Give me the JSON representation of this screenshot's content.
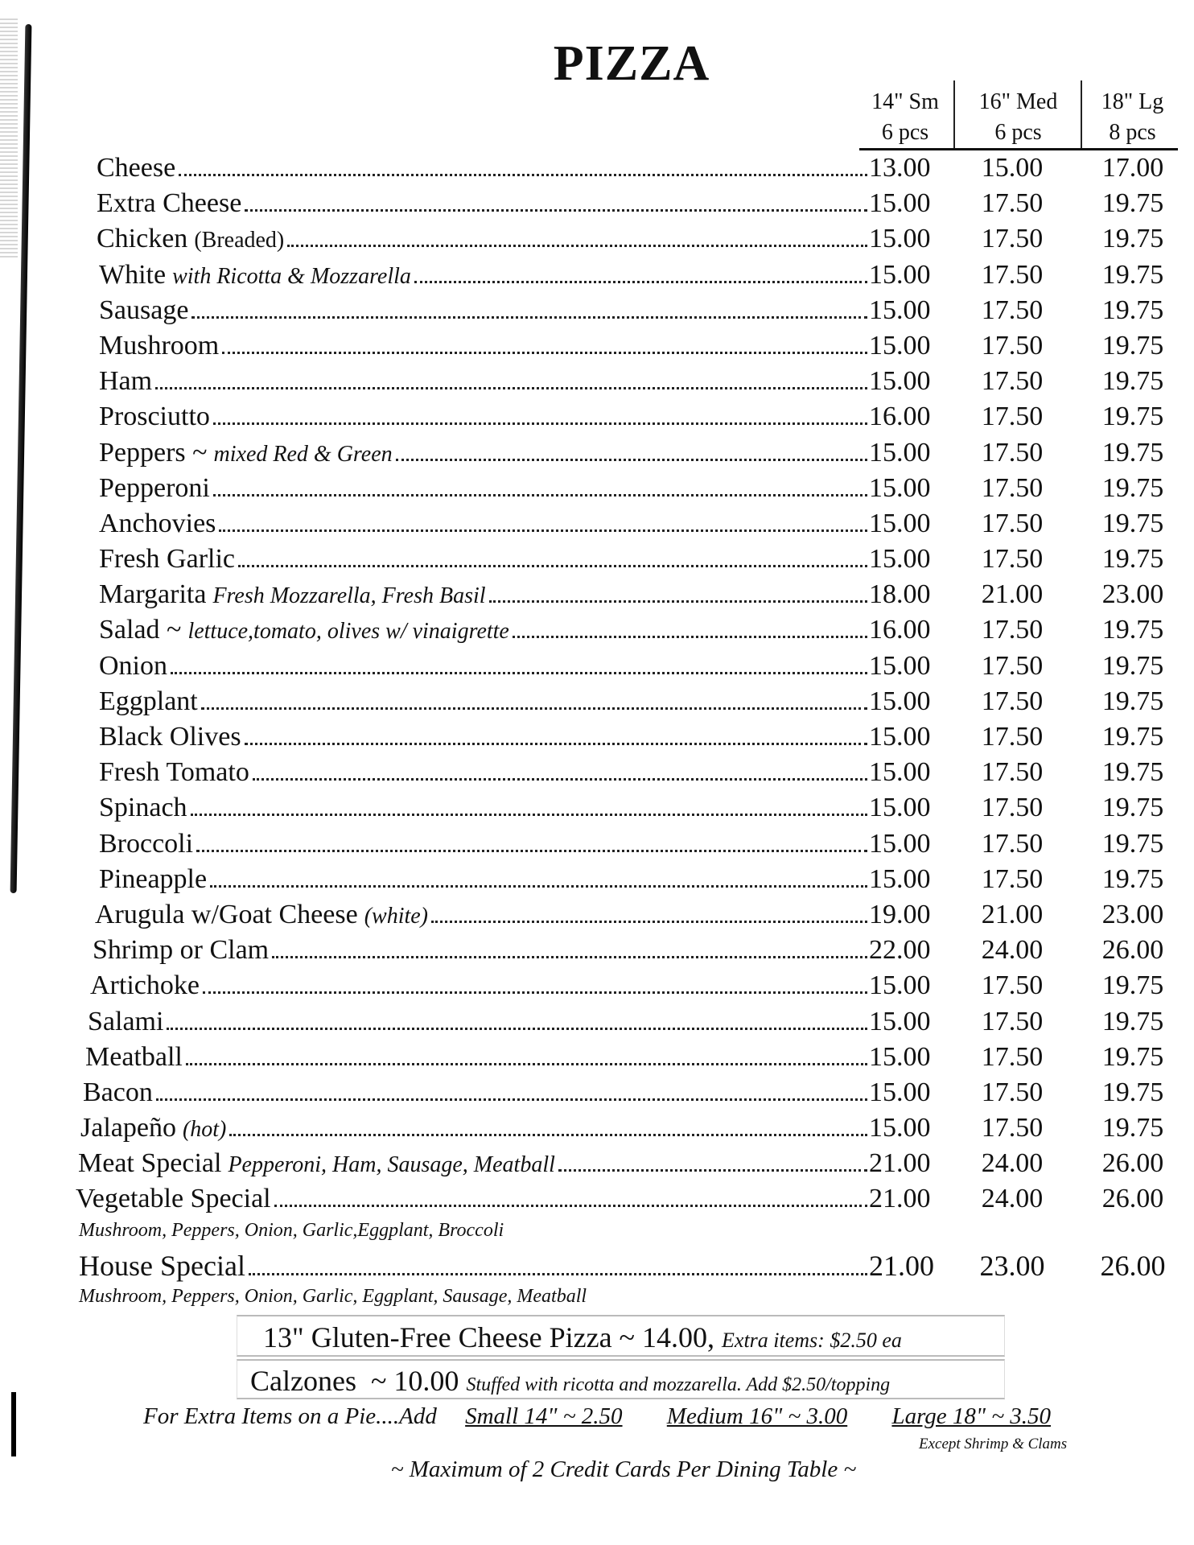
{
  "title": "PIZZA",
  "columns": [
    {
      "size": "14\" Sm",
      "pieces": "6 pcs"
    },
    {
      "size": "16\" Med",
      "pieces": "6 pcs"
    },
    {
      "size": "18\" Lg",
      "pieces": "8 pcs"
    }
  ],
  "items": [
    {
      "name": "Cheese",
      "prices": [
        "13.00",
        "15.00",
        "17.00"
      ]
    },
    {
      "name": "Extra Cheese",
      "prices": [
        "15.00",
        "17.50",
        "19.75"
      ]
    },
    {
      "name": "Chicken",
      "note": "(Breaded)",
      "note_plain": true,
      "prices": [
        "15.00",
        "17.50",
        "19.75"
      ]
    },
    {
      "name": "White",
      "note": "with Ricotta & Mozzarella",
      "prices": [
        "15.00",
        "17.50",
        "19.75"
      ]
    },
    {
      "name": "Sausage",
      "prices": [
        "15.00",
        "17.50",
        "19.75"
      ]
    },
    {
      "name": "Mushroom",
      "prices": [
        "15.00",
        "17.50",
        "19.75"
      ]
    },
    {
      "name": "Ham",
      "prices": [
        "15.00",
        "17.50",
        "19.75"
      ]
    },
    {
      "name": "Prosciutto",
      "prices": [
        "16.00",
        "17.50",
        "19.75"
      ]
    },
    {
      "name": "Peppers ~",
      "note": "mixed Red & Green",
      "prices": [
        "15.00",
        "17.50",
        "19.75"
      ]
    },
    {
      "name": "Pepperoni",
      "prices": [
        "15.00",
        "17.50",
        "19.75"
      ]
    },
    {
      "name": "Anchovies",
      "prices": [
        "15.00",
        "17.50",
        "19.75"
      ]
    },
    {
      "name": "Fresh Garlic",
      "prices": [
        "15.00",
        "17.50",
        "19.75"
      ]
    },
    {
      "name": "Margarita",
      "note": "Fresh Mozzarella, Fresh Basil",
      "prices": [
        "18.00",
        "21.00",
        "23.00"
      ]
    },
    {
      "name": "Salad ~",
      "note": "lettuce,tomato, olives w/ vinaigrette",
      "prices": [
        "16.00",
        "17.50",
        "19.75"
      ]
    },
    {
      "name": "Onion",
      "prices": [
        "15.00",
        "17.50",
        "19.75"
      ]
    },
    {
      "name": "Eggplant",
      "prices": [
        "15.00",
        "17.50",
        "19.75"
      ]
    },
    {
      "name": "Black Olives",
      "prices": [
        "15.00",
        "17.50",
        "19.75"
      ]
    },
    {
      "name": "Fresh Tomato",
      "prices": [
        "15.00",
        "17.50",
        "19.75"
      ]
    },
    {
      "name": "Spinach",
      "prices": [
        "15.00",
        "17.50",
        "19.75"
      ]
    },
    {
      "name": "Broccoli",
      "prices": [
        "15.00",
        "17.50",
        "19.75"
      ]
    },
    {
      "name": "Pineapple",
      "prices": [
        "15.00",
        "17.50",
        "19.75"
      ]
    },
    {
      "name": "Arugula w/Goat Cheese",
      "note": "(white)",
      "prices": [
        "19.00",
        "21.00",
        "23.00"
      ]
    },
    {
      "name": "Shrimp or Clam",
      "prices": [
        "22.00",
        "24.00",
        "26.00"
      ]
    },
    {
      "name": "Artichoke",
      "prices": [
        "15.00",
        "17.50",
        "19.75"
      ]
    },
    {
      "name": "Salami",
      "prices": [
        "15.00",
        "17.50",
        "19.75"
      ]
    },
    {
      "name": "Meatball",
      "prices": [
        "15.00",
        "17.50",
        "19.75"
      ]
    },
    {
      "name": "Bacon",
      "prices": [
        "15.00",
        "17.50",
        "19.75"
      ]
    },
    {
      "name": "Jalapeño",
      "note": "(hot)",
      "prices": [
        "15.00",
        "17.50",
        "19.75"
      ]
    },
    {
      "name": "Meat Special",
      "note": "Pepperoni, Ham, Sausage, Meatball",
      "prices": [
        "21.00",
        "24.00",
        "26.00"
      ]
    },
    {
      "name": "Vegetable Special",
      "desc": "Mushroom, Peppers, Onion, Garlic,Eggplant, Broccoli",
      "prices": [
        "21.00",
        "24.00",
        "26.00"
      ]
    },
    {
      "name": "House Special",
      "desc": "Mushroom, Peppers, Onion, Garlic, Eggplant, Sausage, Meatball",
      "big": true,
      "prices": [
        "21.00",
        "23.00",
        "26.00"
      ]
    }
  ],
  "gluten_free": {
    "label": "13\" Gluten-Free Cheese Pizza ~ 14.00,",
    "note": "Extra items: $2.50 ea"
  },
  "calzones": {
    "label": "Calzones  ~ 10.00",
    "note": "Stuffed with ricotta and mozzarella.  Add $2.50/topping"
  },
  "extra_items": {
    "label": "For Extra Items on a Pie....Add",
    "small": "Small 14\" ~ 2.50",
    "medium": "Medium 16\" ~ 3.00",
    "large": "Large 18\" ~ 3.50",
    "exception": "Except Shrimp & Clams"
  },
  "footer": "~ Maximum of  2 Credit Cards Per Dining Table ~"
}
